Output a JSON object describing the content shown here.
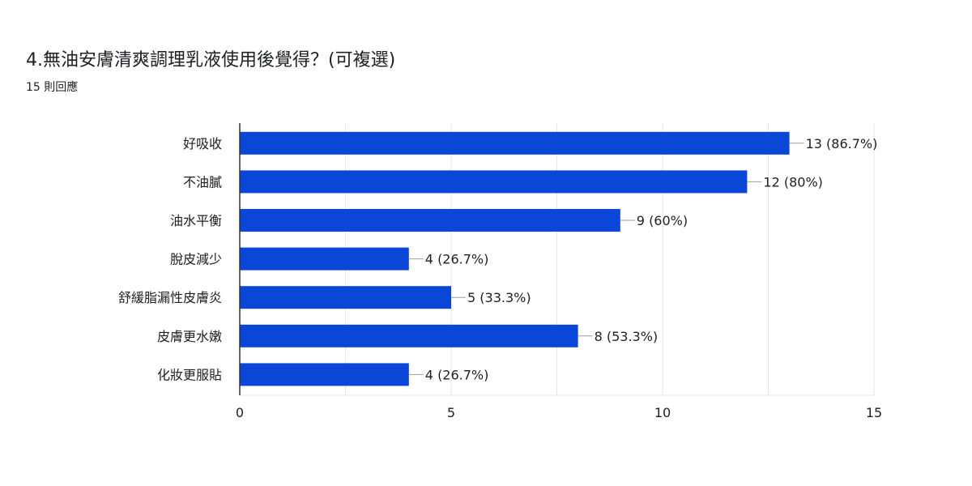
{
  "header": {
    "title": "4.無油安膚清爽調理乳液使用後覺得？(可複選)",
    "responses": "15 則回應"
  },
  "colors": {
    "bar": "#0a47d9",
    "grid": "#e6e6e6",
    "axis": "#333333",
    "text": "#202124",
    "connector": "#9e9e9e"
  },
  "chart_data": {
    "type": "bar",
    "orientation": "horizontal",
    "categories": [
      "好吸收",
      "不油膩",
      "油水平衡",
      "脫皮減少",
      "舒緩脂漏性皮膚炎",
      "皮膚更水嫩",
      "化妝更服貼"
    ],
    "values": [
      13,
      12,
      9,
      4,
      5,
      8,
      4
    ],
    "data_labels": [
      "13 (86.7%)",
      "12 (80%)",
      "9 (60%)",
      "4 (26.7%)",
      "5 (33.3%)",
      "8 (53.3%)",
      "4 (26.7%)"
    ],
    "xlim": [
      0,
      15
    ],
    "xticks": [
      0,
      5,
      10,
      15
    ],
    "xtick_labels": [
      "0",
      "5",
      "10",
      "15"
    ],
    "grid": true
  }
}
